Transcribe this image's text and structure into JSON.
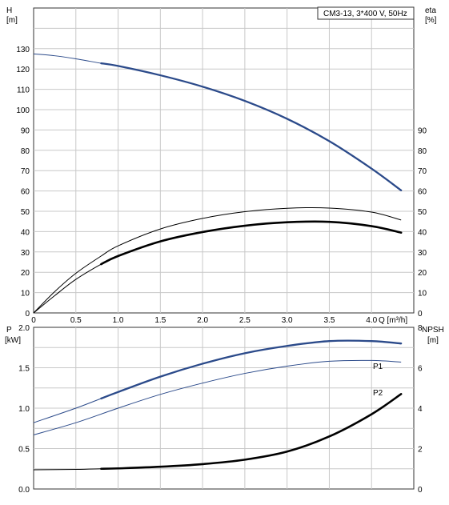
{
  "colors": {
    "blue": "#2b4a8a",
    "black": "#000000",
    "grid": "#c8c8c8",
    "frame": "#333333"
  },
  "chart_data": [
    {
      "type": "line",
      "panel": "head-efficiency",
      "title": "CM3-13, 3*400 V, 50Hz",
      "xlabel": "Q [m³/h]",
      "xlim": [
        0,
        4.5
      ],
      "x_ticks": [
        "0",
        "0.5",
        "1.0",
        "1.5",
        "2.0",
        "2.5",
        "3.0",
        "3.5",
        "4.0"
      ],
      "left_axis": {
        "label_top": "H",
        "label_unit": "[m]",
        "ylim": [
          0,
          150
        ],
        "ticks": [
          "0",
          "10",
          "20",
          "30",
          "40",
          "50",
          "60",
          "70",
          "80",
          "90",
          "100",
          "110",
          "120",
          "130"
        ]
      },
      "right_axis": {
        "label_top": "eta",
        "label_unit": "[%]",
        "ylim": [
          0,
          150
        ],
        "ticks": [
          "0",
          "10",
          "20",
          "30",
          "40",
          "50",
          "60",
          "70",
          "80",
          "90"
        ]
      },
      "grid": true,
      "series": [
        {
          "key": "H",
          "axis": "left",
          "color": "#2b4a8a",
          "x": [
            0,
            0.25,
            0.5,
            0.8,
            1.0,
            1.5,
            2.0,
            2.5,
            3.0,
            3.5,
            4.0,
            4.35
          ],
          "y": [
            127.4,
            126.5,
            125,
            122.8,
            121.5,
            116.9,
            111.3,
            104.3,
            95.5,
            84.5,
            71,
            60.3
          ],
          "thin_until": 0.8
        },
        {
          "key": "eta-thin",
          "axis": "right",
          "color": "#000000",
          "x": [
            0,
            0.25,
            0.5,
            0.8,
            1.0,
            1.5,
            2.0,
            2.5,
            3.0,
            3.5,
            4.0,
            4.35
          ],
          "y": [
            0,
            10.5,
            19.5,
            28,
            33,
            41.3,
            46.5,
            49.8,
            51.5,
            51.6,
            49.6,
            45.7
          ]
        },
        {
          "key": "eta-bold",
          "axis": "right",
          "color": "#000000",
          "x": [
            0,
            0.25,
            0.5,
            0.8,
            1.0,
            1.5,
            2.0,
            2.5,
            3.0,
            3.5,
            4.0,
            4.35
          ],
          "y": [
            0,
            8.5,
            16.5,
            24,
            28,
            35.2,
            39.8,
            42.9,
            44.6,
            44.8,
            42.7,
            39.5
          ],
          "thin_until": 0.8
        }
      ]
    },
    {
      "type": "line",
      "panel": "power-npsh",
      "x_ticks": [],
      "xlim": [
        0,
        4.5
      ],
      "left_axis": {
        "label_top": "P",
        "label_unit": "[kW]",
        "ylim": [
          0,
          2.0
        ],
        "ticks": [
          "0.0",
          "0.5",
          "1.0",
          "1.5",
          "2.0"
        ]
      },
      "right_axis": {
        "label_top": "NPSH",
        "label_unit": "[m]",
        "ylim": [
          0,
          8
        ],
        "ticks": [
          "0",
          "2",
          "4",
          "6",
          "8"
        ]
      },
      "grid": true,
      "series": [
        {
          "key": "P1",
          "name": "P1",
          "axis": "left",
          "color": "#2b4a8a",
          "x": [
            0,
            0.5,
            0.8,
            1.0,
            1.5,
            2.0,
            2.5,
            3.0,
            3.5,
            4.0,
            4.35
          ],
          "y": [
            0.82,
            1.0,
            1.12,
            1.2,
            1.39,
            1.55,
            1.68,
            1.77,
            1.83,
            1.83,
            1.8
          ],
          "thin_until": 0.8
        },
        {
          "key": "P2",
          "name": "P2",
          "axis": "left",
          "color": "#2b4a8a",
          "x": [
            0,
            0.5,
            1.0,
            1.5,
            2.0,
            2.5,
            3.0,
            3.5,
            4.0,
            4.35
          ],
          "y": [
            0.67,
            0.82,
            1.0,
            1.17,
            1.31,
            1.43,
            1.52,
            1.58,
            1.59,
            1.57
          ]
        },
        {
          "key": "NPSH",
          "axis": "right",
          "color": "#000000",
          "x": [
            0,
            0.5,
            0.8,
            1.0,
            1.5,
            2.0,
            2.5,
            3.0,
            3.5,
            4.0,
            4.35
          ],
          "y": [
            0.95,
            0.97,
            1.0,
            1.02,
            1.1,
            1.23,
            1.45,
            1.85,
            2.6,
            3.7,
            4.7
          ],
          "thin_until": 0.8
        }
      ]
    }
  ]
}
